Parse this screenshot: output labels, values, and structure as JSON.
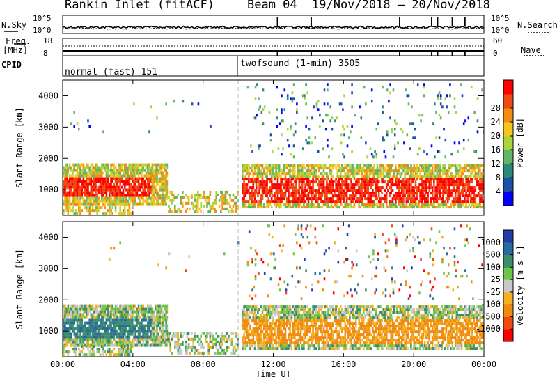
{
  "header": {
    "station": "Rankin Inlet (fitACF)",
    "beam": "Beam 04",
    "date_range": "19/Nov/2018 – 20/Nov/2018"
  },
  "noise_panel": {
    "left_label": "N.Sky",
    "right_label": "N.Search",
    "left_ticks": [
      "10^5",
      "10^0"
    ],
    "right_ticks": [
      "10^5",
      "10^0"
    ]
  },
  "freq_panel": {
    "left_label_1": "Freq.",
    "left_label_2": "[MHz]",
    "left_ticks": [
      "18",
      "8"
    ],
    "right_label": "Nave",
    "right_ticks": [
      "60",
      "0"
    ]
  },
  "cpid_panel": {
    "label": "CPID",
    "modes": [
      "normal (fast) 151",
      "twofsound (1-min) 3505"
    ]
  },
  "chart_data": [
    {
      "type": "heatmap",
      "title": "Power",
      "ylabel": "Slant Range [km]",
      "xlabel": "",
      "x_ticks": [
        "00:00",
        "04:00",
        "08:00",
        "12:00",
        "16:00",
        "20:00",
        "00:00"
      ],
      "y_ticks": [
        "1000",
        "2000",
        "3000",
        "4000"
      ],
      "ylim": [
        180,
        4500
      ],
      "xlim_hours": [
        0,
        24
      ],
      "colorbar_label": "Power [dB]",
      "colorbar_ticks": [
        "4",
        "8",
        "12",
        "16",
        "20",
        "24",
        "28"
      ],
      "colorbar_colors": [
        "#0000ff",
        "#1f4fa8",
        "#2a8a7a",
        "#62b566",
        "#a6d63b",
        "#f6c41b",
        "#f58c12",
        "#ef4a11",
        "#ff0000"
      ],
      "mode_change_hour": 10
    },
    {
      "type": "heatmap",
      "title": "Velocity",
      "ylabel": "Slant Range [km]",
      "xlabel": "Time UT",
      "x_ticks": [
        "00:00",
        "04:00",
        "08:00",
        "12:00",
        "16:00",
        "20:00",
        "00:00"
      ],
      "y_ticks": [
        "1000",
        "2000",
        "3000",
        "4000"
      ],
      "ylim": [
        180,
        4500
      ],
      "xlim_hours": [
        0,
        24
      ],
      "colorbar_label": "Velocity [m s⁻¹]",
      "colorbar_ticks": [
        "1000",
        "500",
        "100",
        "25",
        "-25",
        "-100",
        "-500",
        "-1000"
      ],
      "colorbar_colors": [
        "#1f3ea8",
        "#2a6aa0",
        "#3c8f6a",
        "#6cc64a",
        "#c8c8c8",
        "#f3b020",
        "#f08a10",
        "#ef4a11",
        "#ff0000"
      ],
      "mode_change_hour": 10
    }
  ]
}
